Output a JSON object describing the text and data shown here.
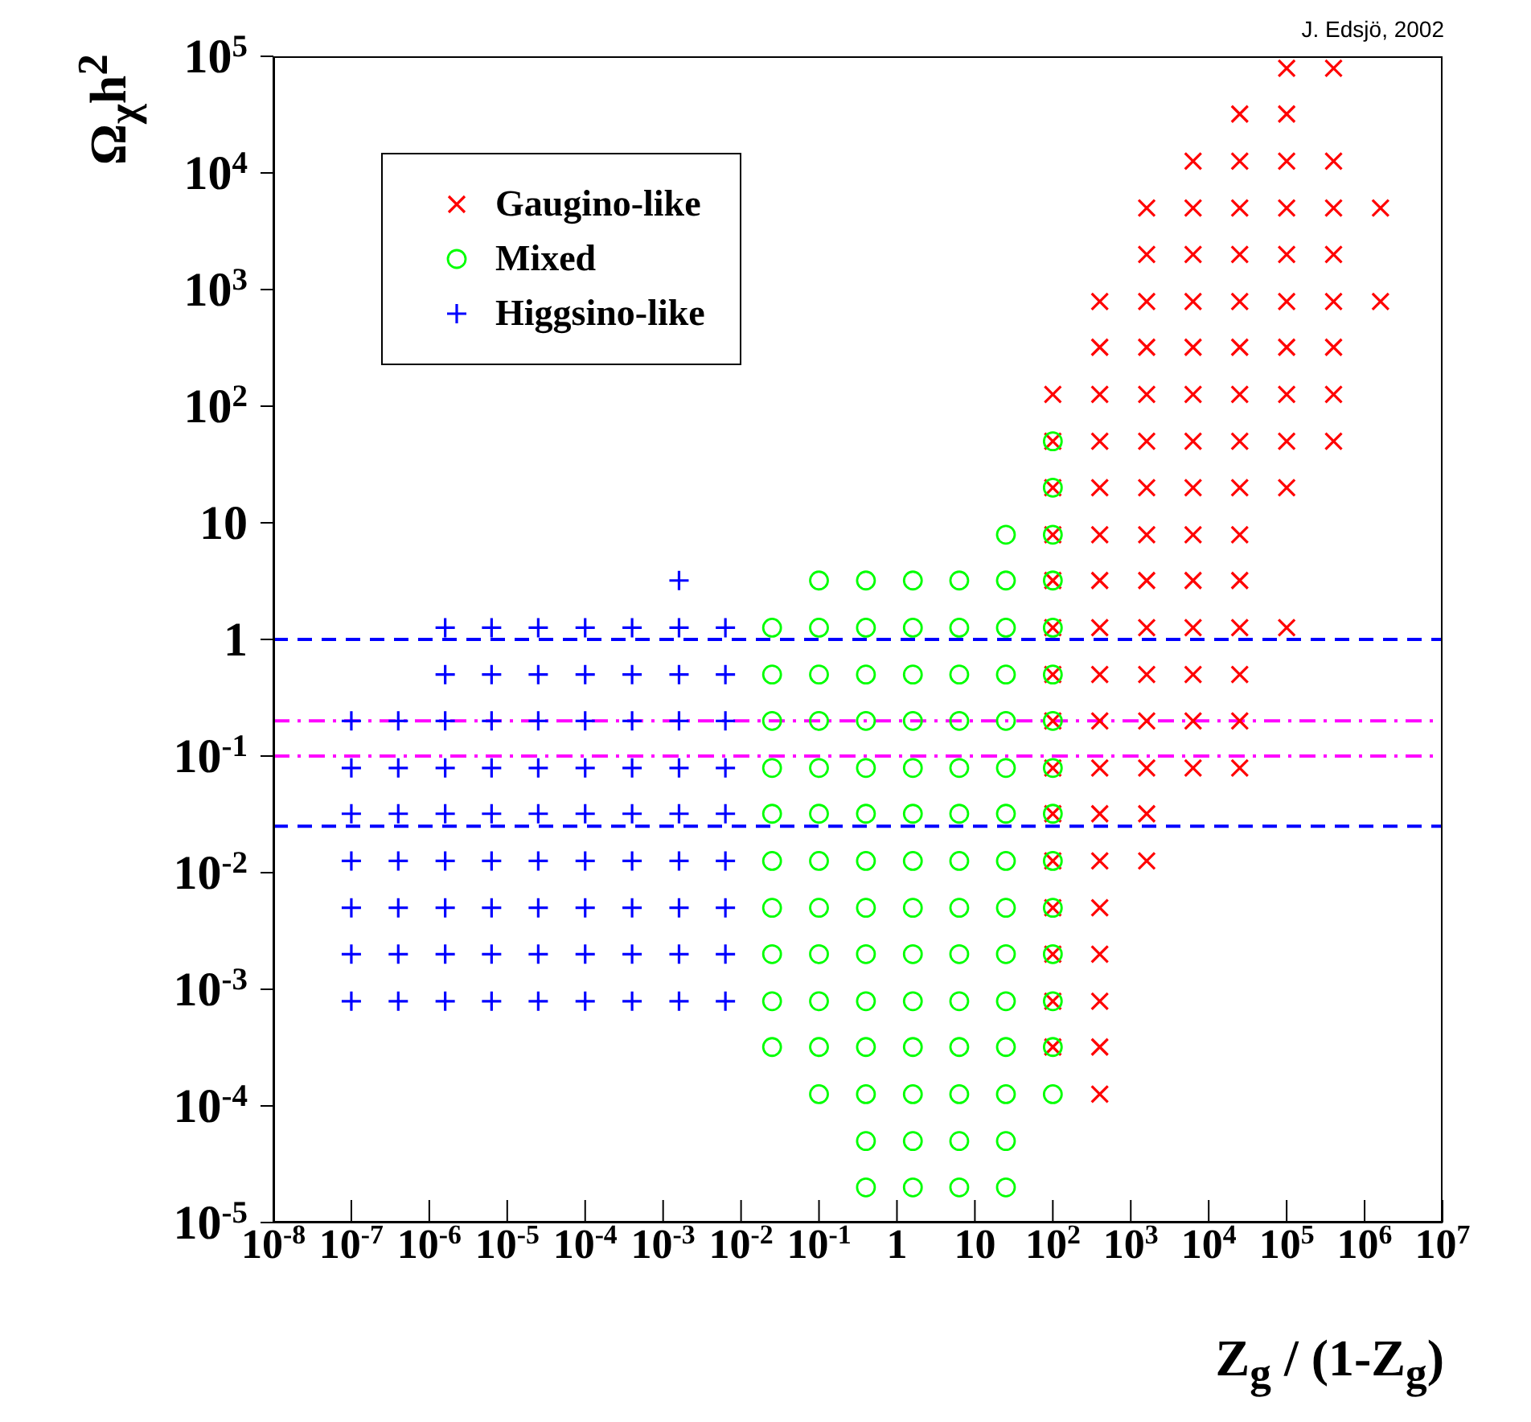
{
  "chart_data": {
    "type": "scatter",
    "xlabel": "Z$_{g}$ / (1-Z$_{g}$)",
    "ylabel": "Ω$_{χ}$h$^{2}$",
    "annotations": [
      "J. Edsjö, 2002"
    ],
    "log": "xy",
    "legend": "top left",
    "grid": false,
    "xlim": [
      1e-08,
      10000000.0
    ],
    "xticks": [
      {
        "value": 1e-08,
        "label": "10$^{-8}$"
      },
      {
        "value": 1e-07,
        "label": "10$^{-7}$"
      },
      {
        "value": 1e-06,
        "label": "10$^{-6}$"
      },
      {
        "value": 1e-05,
        "label": "10$^{-5}$"
      },
      {
        "value": 0.0001,
        "label": "10$^{-4}$"
      },
      {
        "value": 0.001,
        "label": "10$^{-3}$"
      },
      {
        "value": 0.01,
        "label": "10$^{-2}$"
      },
      {
        "value": 0.1,
        "label": "10$^{-1}$"
      },
      1,
      10,
      {
        "value": 100,
        "label": "10$^{2}$"
      },
      {
        "value": 1000,
        "label": "10$^{3}$"
      },
      {
        "value": 10000,
        "label": "10$^{4}$"
      },
      {
        "value": 100000,
        "label": "10$^{5}$"
      },
      {
        "value": 1000000,
        "label": "10$^{6}$"
      },
      {
        "value": 10000000,
        "label": "10$^{7}$"
      }
    ],
    "ylim": [
      1e-05,
      100000.0
    ],
    "yticks": [
      {
        "value": 1e-05,
        "label": "10$^{-5}$"
      },
      {
        "value": 0.0001,
        "label": "10$^{-4}$"
      },
      {
        "value": 0.001,
        "label": "10$^{-3}$"
      },
      {
        "value": 0.01,
        "label": "10$^{-2}$"
      },
      {
        "value": 0.1,
        "label": "10$^{-1}$"
      },
      1,
      10,
      {
        "value": 100,
        "label": "10$^{2}$"
      },
      {
        "value": 1000,
        "label": "10$^{3}$"
      },
      {
        "value": 10000,
        "label": "10$^{4}$"
      },
      {
        "value": 100000,
        "label": "10$^{5}$"
      }
    ],
    "ref_lines": [
      {
        "axis": "y",
        "value": 1,
        "color": "#0000ff",
        "line_style": "dashed"
      },
      {
        "axis": "y",
        "value": 0.025,
        "color": "#0000ff",
        "line_style": "dashed"
      },
      {
        "axis": "y",
        "value": 0.2,
        "color": "#ff00ff",
        "line_style": "dotted"
      },
      {
        "axis": "y",
        "value": 0.1,
        "color": "#ff00ff",
        "line_style": "dotted"
      }
    ],
    "series": [
      {
        "name": "Gaugino-like",
        "color": "#ff0000",
        "marker": "cross",
        "x": [
          100,
          100,
          100,
          100,
          100,
          100,
          100,
          100,
          100,
          100,
          100,
          100,
          100,
          100,
          100,
          400,
          400,
          400,
          400,
          400,
          400,
          400,
          400,
          400,
          400,
          400,
          400,
          400,
          400,
          400,
          400,
          400,
          400,
          1600,
          1600,
          1600,
          1600,
          1600,
          1600,
          1600,
          1600,
          1600,
          1600,
          1600,
          1600,
          1600,
          1600,
          1600,
          6300,
          6300,
          6300,
          6300,
          6300,
          6300,
          6300,
          6300,
          6300,
          6300,
          6300,
          6300,
          6300,
          6300,
          25000,
          25000,
          25000,
          25000,
          25000,
          25000,
          25000,
          25000,
          25000,
          25000,
          25000,
          25000,
          25000,
          25000,
          25000,
          100000,
          100000,
          100000,
          100000,
          100000,
          100000,
          100000,
          100000,
          100000,
          100000,
          100000,
          400000,
          400000,
          400000,
          400000,
          400000,
          400000,
          400000,
          400000,
          1600000,
          1600000
        ],
        "values": [
          126,
          50,
          20,
          7.9,
          3.2,
          1.26,
          0.5,
          0.2,
          0.079,
          0.032,
          0.0126,
          0.005,
          0.002,
          0.00079,
          0.00032,
          790,
          320,
          126,
          50,
          20,
          7.9,
          3.2,
          1.26,
          0.5,
          0.2,
          0.079,
          0.032,
          0.0126,
          0.005,
          0.002,
          0.00079,
          0.00032,
          0.000126,
          5000,
          2000,
          790,
          320,
          126,
          50,
          20,
          7.9,
          3.2,
          1.26,
          0.5,
          0.2,
          0.079,
          0.032,
          0.0126,
          12600,
          5000,
          2000,
          790,
          320,
          126,
          50,
          20,
          7.9,
          3.2,
          1.26,
          0.5,
          0.2,
          0.079,
          32000,
          12600,
          5000,
          2000,
          790,
          320,
          126,
          50,
          20,
          7.9,
          3.2,
          1.26,
          0.5,
          0.2,
          0.079,
          79000,
          32000,
          12600,
          5000,
          2000,
          790,
          320,
          126,
          50,
          20,
          1.26,
          79000,
          12600,
          5000,
          2000,
          790,
          320,
          126,
          50,
          5000,
          790
        ]
      },
      {
        "name": "Mixed",
        "color": "#00ff00",
        "marker": "circle",
        "x": [
          0.025,
          0.025,
          0.025,
          0.025,
          0.025,
          0.025,
          0.025,
          0.025,
          0.025,
          0.025,
          0.1,
          0.1,
          0.1,
          0.1,
          0.1,
          0.1,
          0.1,
          0.1,
          0.1,
          0.1,
          0.1,
          0.1,
          0.4,
          0.4,
          0.4,
          0.4,
          0.4,
          0.4,
          0.4,
          0.4,
          0.4,
          0.4,
          0.4,
          0.4,
          0.4,
          0.4,
          1.6,
          1.6,
          1.6,
          1.6,
          1.6,
          1.6,
          1.6,
          1.6,
          1.6,
          1.6,
          1.6,
          1.6,
          1.6,
          1.6,
          6.3,
          6.3,
          6.3,
          6.3,
          6.3,
          6.3,
          6.3,
          6.3,
          6.3,
          6.3,
          6.3,
          6.3,
          6.3,
          6.3,
          25,
          25,
          25,
          25,
          25,
          25,
          25,
          25,
          25,
          25,
          25,
          25,
          25,
          25,
          25,
          100,
          100,
          100,
          100,
          100,
          100,
          100,
          100,
          100,
          100,
          100,
          100,
          100,
          100,
          100
        ],
        "values": [
          1.26,
          0.5,
          0.2,
          0.079,
          0.032,
          0.0126,
          0.005,
          0.002,
          0.00079,
          0.00032,
          3.2,
          1.26,
          0.5,
          0.2,
          0.079,
          0.032,
          0.0126,
          0.005,
          0.002,
          0.00079,
          0.00032,
          0.000126,
          3.2,
          1.26,
          0.5,
          0.2,
          0.079,
          0.032,
          0.0126,
          0.005,
          0.002,
          0.00079,
          0.00032,
          0.000126,
          5e-05,
          2e-05,
          3.2,
          1.26,
          0.5,
          0.2,
          0.079,
          0.032,
          0.0126,
          0.005,
          0.002,
          0.00079,
          0.00032,
          0.000126,
          5e-05,
          2e-05,
          3.2,
          1.26,
          0.5,
          0.2,
          0.079,
          0.032,
          0.0126,
          0.005,
          0.002,
          0.00079,
          0.00032,
          0.000126,
          5e-05,
          2e-05,
          7.9,
          3.2,
          1.26,
          0.5,
          0.2,
          0.079,
          0.032,
          0.0126,
          0.005,
          0.002,
          0.00079,
          0.00032,
          0.000126,
          5e-05,
          2e-05,
          50,
          20,
          7.9,
          3.2,
          1.26,
          0.5,
          0.2,
          0.079,
          0.032,
          0.0126,
          0.005,
          0.002,
          0.00079,
          0.00032,
          0.000126
        ]
      },
      {
        "name": "Higgsino-like",
        "color": "#0000ff",
        "marker": "plus",
        "x": [
          1e-07,
          1e-07,
          1e-07,
          1e-07,
          1e-07,
          1e-07,
          1e-07,
          4e-07,
          4e-07,
          4e-07,
          4e-07,
          4e-07,
          4e-07,
          4e-07,
          1.6e-06,
          1.6e-06,
          1.6e-06,
          1.6e-06,
          1.6e-06,
          1.6e-06,
          1.6e-06,
          1.6e-06,
          1.6e-06,
          6.3e-06,
          6.3e-06,
          6.3e-06,
          6.3e-06,
          6.3e-06,
          6.3e-06,
          6.3e-06,
          6.3e-06,
          6.3e-06,
          2.5e-05,
          2.5e-05,
          2.5e-05,
          2.5e-05,
          2.5e-05,
          2.5e-05,
          2.5e-05,
          2.5e-05,
          2.5e-05,
          0.0001,
          0.0001,
          0.0001,
          0.0001,
          0.0001,
          0.0001,
          0.0001,
          0.0001,
          0.0001,
          0.0004,
          0.0004,
          0.0004,
          0.0004,
          0.0004,
          0.0004,
          0.0004,
          0.0004,
          0.0004,
          0.0016,
          0.0016,
          0.0016,
          0.0016,
          0.0016,
          0.0016,
          0.0016,
          0.0016,
          0.0016,
          0.0016,
          0.0063,
          0.0063,
          0.0063,
          0.0063,
          0.0063,
          0.0063,
          0.0063,
          0.0063,
          0.0063
        ],
        "values": [
          0.2,
          0.079,
          0.032,
          0.0126,
          0.005,
          0.002,
          0.00079,
          0.2,
          0.079,
          0.032,
          0.0126,
          0.005,
          0.002,
          0.00079,
          1.26,
          0.5,
          0.2,
          0.079,
          0.032,
          0.0126,
          0.005,
          0.002,
          0.00079,
          1.26,
          0.5,
          0.2,
          0.079,
          0.032,
          0.0126,
          0.005,
          0.002,
          0.00079,
          1.26,
          0.5,
          0.2,
          0.079,
          0.032,
          0.0126,
          0.005,
          0.002,
          0.00079,
          1.26,
          0.5,
          0.2,
          0.079,
          0.032,
          0.0126,
          0.005,
          0.002,
          0.00079,
          1.26,
          0.5,
          0.2,
          0.079,
          0.032,
          0.0126,
          0.005,
          0.002,
          0.00079,
          3.2,
          1.26,
          0.5,
          0.2,
          0.079,
          0.032,
          0.0126,
          0.005,
          0.002,
          0.00079,
          1.26,
          0.5,
          0.2,
          0.079,
          0.032,
          0.0126,
          0.005,
          0.002,
          0.00079
        ]
      }
    ]
  }
}
